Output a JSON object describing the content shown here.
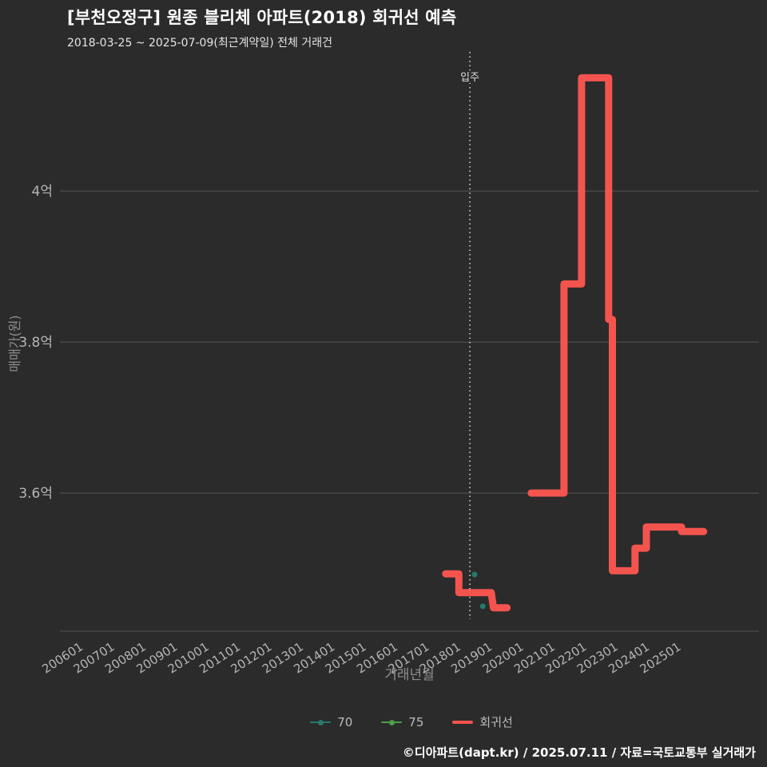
{
  "header": {
    "title": "[부천오정구] 원종 블리체 아파트(2018) 회귀선 예측",
    "subtitle": "2018-03-25 ~ 2025-07-09(최근계약일) 전체 거래건"
  },
  "footer": {
    "credit": "©디아파트(dapt.kr) / 2025.07.11 / 자료=국토교통부 실거래가"
  },
  "colors": {
    "background": "#2b2b2b",
    "title": "#ffffff",
    "subtitle": "#e6e6e6",
    "grid": "#575757",
    "axis_line": "#555555",
    "tick_text": "#b5b5b5",
    "axis_title": "#8f8f8f",
    "annotation": "#e0e0e0",
    "regression": "#f4544e",
    "series70": "#26796d",
    "series75": "#4a9e4a",
    "legend_text": "#bbbbbb",
    "footer_text": "#ffffff"
  },
  "chart_data": {
    "type": "line",
    "title": "[부천오정구] 원종 블리체 아파트(2018) 회귀선 예측",
    "subtitle": "2018-03-25 ~ 2025-07-09(최근계약일) 전체 거래건",
    "xlabel": "거래년월",
    "ylabel": "매매가(원)",
    "grid": true,
    "legend_position": "bottom",
    "x_range": [
      2005.44,
      2027.66
    ],
    "y_range": [
      3.417,
      4.179
    ],
    "x_ticks": [
      "200601",
      "200701",
      "200801",
      "200901",
      "201001",
      "201101",
      "201201",
      "201301",
      "201401",
      "201501",
      "201601",
      "201701",
      "201801",
      "201901",
      "202001",
      "202101",
      "202201",
      "202301",
      "202401",
      "202501"
    ],
    "y_ticks": [
      {
        "label": "4억",
        "value": 4.0
      },
      {
        "label": "3.8억",
        "value": 3.8
      },
      {
        "label": "3.6억",
        "value": 3.6
      }
    ],
    "annotation": {
      "label": "입주",
      "x": 2018.47
    },
    "legend": [
      {
        "label": "70",
        "color_key": "series70",
        "marker": "line-dot"
      },
      {
        "label": "75",
        "color_key": "series75",
        "marker": "line-dot"
      },
      {
        "label": "회귀선",
        "color_key": "regression",
        "marker": "line"
      }
    ],
    "series": [
      {
        "name": "70",
        "kind": "scatter",
        "color_key": "series70",
        "points": [
          [
            2018.62,
            3.492
          ],
          [
            2018.88,
            3.45
          ]
        ]
      },
      {
        "name": "75",
        "kind": "scatter",
        "color_key": "series75",
        "points": []
      },
      {
        "name": "회귀선",
        "kind": "step-line",
        "color_key": "regression",
        "stroke_width": 9,
        "segments": [
          [
            [
              2017.7,
              3.493
            ],
            [
              2018.12,
              3.493
            ],
            [
              2018.12,
              3.468
            ],
            [
              2019.15,
              3.468
            ],
            [
              2019.22,
              3.448
            ],
            [
              2019.65,
              3.448
            ]
          ],
          [
            [
              2020.42,
              3.6
            ],
            [
              2021.46,
              3.6
            ],
            [
              2021.46,
              3.877
            ],
            [
              2022.02,
              3.877
            ],
            [
              2022.02,
              4.15
            ],
            [
              2022.88,
              4.15
            ],
            [
              2022.88,
              3.83
            ],
            [
              2023.0,
              3.83
            ],
            [
              2023.0,
              3.497
            ],
            [
              2023.72,
              3.497
            ],
            [
              2023.72,
              3.527
            ],
            [
              2024.08,
              3.527
            ],
            [
              2024.08,
              3.555
            ],
            [
              2025.2,
              3.555
            ],
            [
              2025.2,
              3.549
            ],
            [
              2025.9,
              3.549
            ]
          ]
        ]
      }
    ]
  }
}
